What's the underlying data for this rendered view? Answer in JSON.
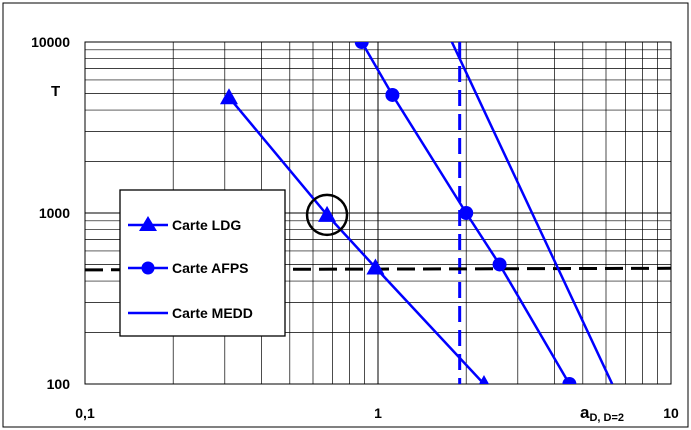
{
  "chart_data": {
    "type": "line",
    "title": "",
    "xlabel": "a",
    "xlabel_sub": "D, D=2",
    "ylabel": "T",
    "x_scale": "log",
    "y_scale": "log",
    "xlim": [
      0.1,
      10
    ],
    "ylim": [
      100,
      10000
    ],
    "grid": true,
    "legend_position": "left-middle",
    "x_ticks": [
      "0,1",
      "1",
      "10"
    ],
    "y_ticks": [
      "100",
      "1000",
      "10000"
    ],
    "series": [
      {
        "name": "Carte LDG",
        "marker": "triangle",
        "color": "#0000FF",
        "points": [
          [
            0.31,
            4750
          ],
          [
            0.67,
            975
          ],
          [
            0.98,
            480
          ],
          [
            2.3,
            100
          ]
        ]
      },
      {
        "name": "Carte AFPS",
        "marker": "circle",
        "color": "#0000FF",
        "points": [
          [
            0.88,
            10000
          ],
          [
            1.12,
            4900
          ],
          [
            2.0,
            1000
          ],
          [
            2.6,
            500
          ],
          [
            4.5,
            100
          ]
        ]
      },
      {
        "name": "Carte MEDD",
        "marker": "none",
        "color": "#0000FF",
        "points": [
          [
            1.7,
            12000
          ],
          [
            6.3,
            100
          ]
        ]
      }
    ],
    "reference_lines": [
      {
        "kind": "vertical",
        "style": "dashed",
        "color": "#0000FF",
        "x": 1.9
      },
      {
        "kind": "horizontal",
        "style": "dashed",
        "color": "#000000",
        "points": [
          [
            0.1,
            465
          ],
          [
            10,
            475
          ]
        ]
      }
    ],
    "annotations": [
      {
        "kind": "circle",
        "x": 0.67,
        "y": 975,
        "color": "#000000"
      }
    ]
  }
}
